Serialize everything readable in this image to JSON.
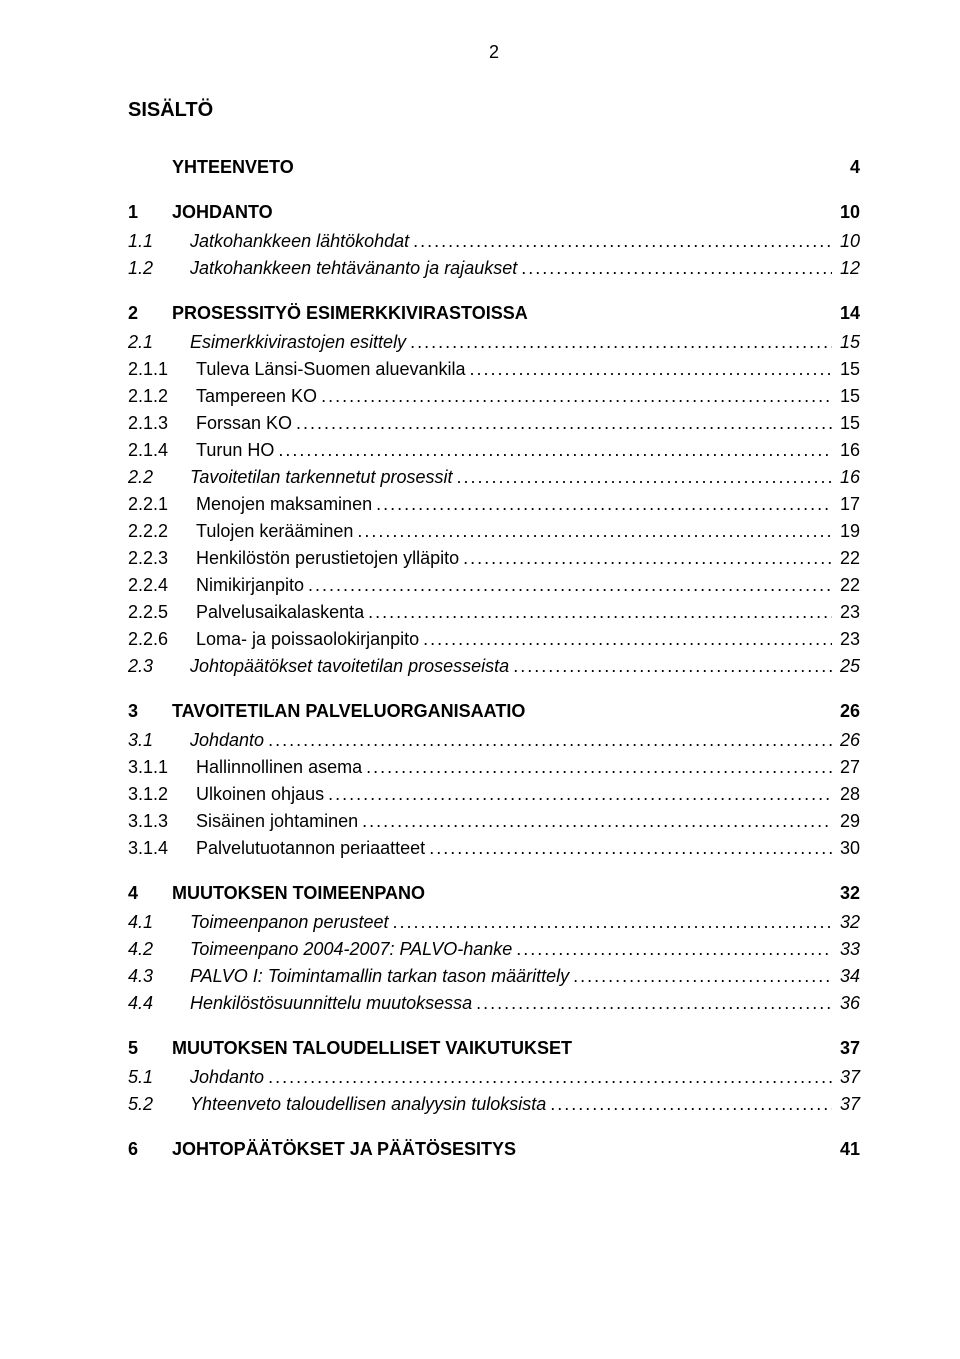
{
  "page_number_top": "2",
  "doc_title": "SISÄLTÖ",
  "leader_char": ".",
  "fontsize_body_pt": 18,
  "fontsize_title_pt": 20,
  "font_family": "Arial",
  "background_color": "#ffffff",
  "text_color": "#000000",
  "toc": [
    {
      "level": 1,
      "number": "",
      "title": "YHTEENVETO",
      "page": "4"
    },
    {
      "level": 1,
      "number": "1",
      "title": "JOHDANTO",
      "page": "10"
    },
    {
      "level": 2,
      "number": "1.1",
      "title": "Jatkohankkeen lähtökohdat",
      "page": "10"
    },
    {
      "level": 2,
      "number": "1.2",
      "title": "Jatkohankkeen tehtävänanto ja rajaukset",
      "page": "12"
    },
    {
      "level": 1,
      "number": "2",
      "title": "PROSESSITYÖ ESIMERKKIVIRASTOISSA",
      "page": "14"
    },
    {
      "level": 2,
      "number": "2.1",
      "title": "Esimerkkivirastojen esittely",
      "page": "15"
    },
    {
      "level": 3,
      "number": "2.1.1",
      "title": "Tuleva Länsi-Suomen aluevankila",
      "page": "15"
    },
    {
      "level": 3,
      "number": "2.1.2",
      "title": "Tampereen KO",
      "page": "15"
    },
    {
      "level": 3,
      "number": "2.1.3",
      "title": "Forssan KO",
      "page": "15"
    },
    {
      "level": 3,
      "number": "2.1.4",
      "title": "Turun HO",
      "page": "16"
    },
    {
      "level": 2,
      "number": "2.2",
      "title": "Tavoitetilan tarkennetut prosessit",
      "page": "16"
    },
    {
      "level": 3,
      "number": "2.2.1",
      "title": "Menojen maksaminen",
      "page": "17"
    },
    {
      "level": 3,
      "number": "2.2.2",
      "title": "Tulojen kerääminen",
      "page": "19"
    },
    {
      "level": 3,
      "number": "2.2.3",
      "title": "Henkilöstön perustietojen ylläpito",
      "page": "22"
    },
    {
      "level": 3,
      "number": "2.2.4",
      "title": "Nimikirjanpito",
      "page": "22"
    },
    {
      "level": 3,
      "number": "2.2.5",
      "title": "Palvelusaikalaskenta",
      "page": "23"
    },
    {
      "level": 3,
      "number": "2.2.6",
      "title": "Loma- ja poissaolokirjanpito",
      "page": "23"
    },
    {
      "level": 2,
      "number": "2.3",
      "title": "Johtopäätökset tavoitetilan prosesseista",
      "page": "25"
    },
    {
      "level": 1,
      "number": "3",
      "title": "TAVOITETILAN PALVELUORGANISAATIO",
      "page": "26"
    },
    {
      "level": 2,
      "number": "3.1",
      "title": "Johdanto",
      "page": "26"
    },
    {
      "level": 3,
      "number": "3.1.1",
      "title": "Hallinnollinen asema",
      "page": "27"
    },
    {
      "level": 3,
      "number": "3.1.2",
      "title": "Ulkoinen ohjaus",
      "page": "28"
    },
    {
      "level": 3,
      "number": "3.1.3",
      "title": "Sisäinen johtaminen",
      "page": "29"
    },
    {
      "level": 3,
      "number": "3.1.4",
      "title": "Palvelutuotannon periaatteet",
      "page": "30"
    },
    {
      "level": 1,
      "number": "4",
      "title": "MUUTOKSEN TOIMEENPANO",
      "page": "32"
    },
    {
      "level": 2,
      "number": "4.1",
      "title": "Toimeenpanon perusteet",
      "page": "32"
    },
    {
      "level": 2,
      "number": "4.2",
      "title": "Toimeenpano 2004-2007: PALVO-hanke",
      "page": "33"
    },
    {
      "level": 2,
      "number": "4.3",
      "title": "PALVO I: Toimintamallin tarkan tason määrittely",
      "page": "34"
    },
    {
      "level": 2,
      "number": "4.4",
      "title": "Henkilöstösuunnittelu muutoksessa",
      "page": "36"
    },
    {
      "level": 1,
      "number": "5",
      "title": "MUUTOKSEN TALOUDELLISET VAIKUTUKSET",
      "page": "37"
    },
    {
      "level": 2,
      "number": "5.1",
      "title": "Johdanto",
      "page": "37"
    },
    {
      "level": 2,
      "number": "5.2",
      "title": "Yhteenveto taloudellisen analyysin tuloksista",
      "page": "37"
    },
    {
      "level": 1,
      "number": "6",
      "title": "JOHTOPÄÄTÖKSET JA PÄÄTÖSESITYS",
      "page": "41"
    }
  ]
}
